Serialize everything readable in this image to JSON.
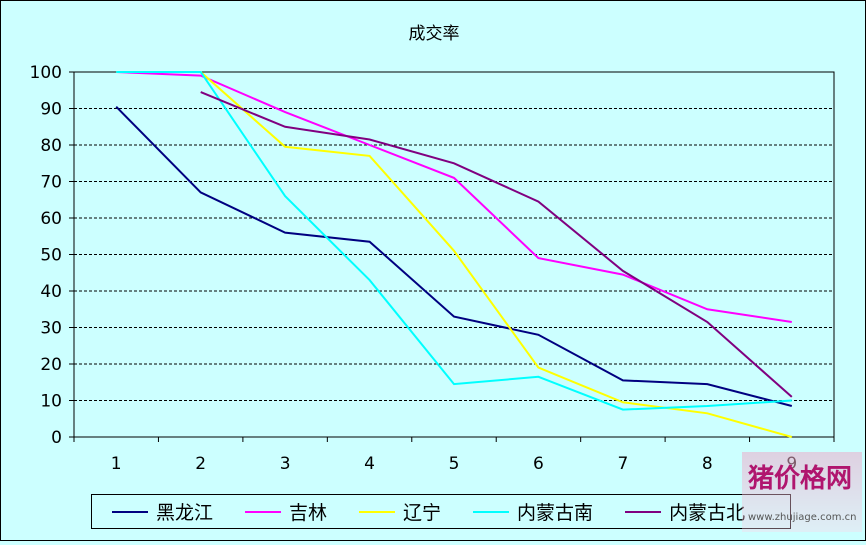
{
  "chart_data": {
    "type": "line",
    "title": "成交率",
    "categories": [
      "1",
      "2",
      "3",
      "4",
      "5",
      "6",
      "7",
      "8",
      "9"
    ],
    "ylim": [
      0,
      100
    ],
    "yticks": [
      "0",
      "10",
      "20",
      "30",
      "40",
      "50",
      "60",
      "70",
      "80",
      "90",
      "100"
    ],
    "grid": true,
    "legend_position": "bottom",
    "series": [
      {
        "name": "黑龙江",
        "color": "#000080",
        "values": [
          90.5,
          67,
          56,
          53.5,
          33,
          28,
          15.5,
          14.5,
          8.5
        ]
      },
      {
        "name": "吉林",
        "color": "#ff00ff",
        "values": [
          100,
          99,
          89,
          80,
          71,
          49,
          44.5,
          35,
          31.5
        ]
      },
      {
        "name": "辽宁",
        "color": "#ffff00",
        "values": [
          100,
          100,
          79.5,
          77,
          51,
          19,
          9.5,
          6.5,
          0
        ]
      },
      {
        "name": "内蒙古南",
        "color": "#00ffff",
        "values": [
          100,
          100,
          66,
          43,
          14.5,
          16.5,
          7.5,
          8.5,
          10
        ]
      },
      {
        "name": "内蒙古北",
        "color": "#800080",
        "values": [
          null,
          94.5,
          85,
          81.5,
          75,
          64.5,
          45.5,
          31.5,
          11
        ]
      }
    ]
  },
  "watermark": {
    "text": "猪价格网",
    "url": "www.zhujiage.com.cn"
  }
}
